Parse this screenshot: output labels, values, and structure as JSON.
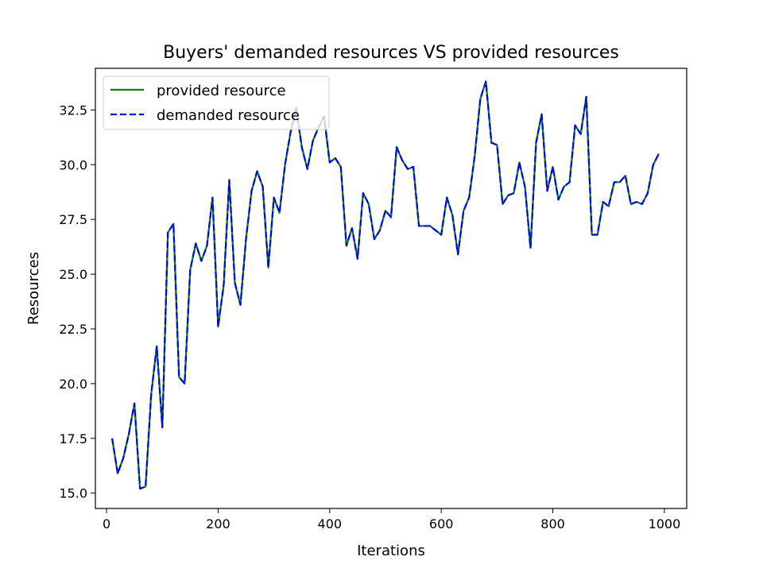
{
  "chart_data": {
    "type": "line",
    "title": "Buyers' demanded resources VS provided resources",
    "xlabel": "Iterations",
    "ylabel": "Resources",
    "xlim": [
      -20,
      1040
    ],
    "ylim": [
      14.3,
      34.4
    ],
    "xticks": [
      0,
      200,
      400,
      600,
      800,
      1000
    ],
    "xtick_labels": [
      "0",
      "200",
      "400",
      "600",
      "800",
      "1000"
    ],
    "yticks": [
      15.0,
      17.5,
      20.0,
      22.5,
      25.0,
      27.5,
      30.0,
      32.5
    ],
    "ytick_labels": [
      "15.0",
      "17.5",
      "20.0",
      "22.5",
      "25.0",
      "27.5",
      "30.0",
      "32.5"
    ],
    "grid": false,
    "legend_position": "upper-left",
    "x": [
      10,
      20,
      30,
      40,
      50,
      60,
      70,
      80,
      90,
      100,
      110,
      120,
      130,
      140,
      150,
      160,
      170,
      180,
      190,
      200,
      210,
      220,
      230,
      240,
      250,
      260,
      270,
      280,
      290,
      300,
      310,
      320,
      330,
      340,
      350,
      360,
      370,
      380,
      390,
      400,
      410,
      420,
      430,
      440,
      450,
      460,
      470,
      480,
      490,
      500,
      510,
      520,
      530,
      540,
      550,
      560,
      570,
      580,
      590,
      600,
      610,
      620,
      630,
      640,
      650,
      660,
      670,
      680,
      690,
      700,
      710,
      720,
      730,
      740,
      750,
      760,
      770,
      780,
      790,
      800,
      810,
      820,
      830,
      840,
      850,
      860,
      870,
      880,
      890,
      900,
      910,
      920,
      930,
      940,
      950,
      960,
      970,
      980,
      990
    ],
    "series": [
      {
        "name": "provided resource",
        "color": "#008000",
        "style": "solid",
        "values": [
          17.5,
          15.9,
          16.6,
          17.7,
          19.1,
          15.2,
          15.3,
          19.5,
          21.7,
          18.0,
          26.9,
          27.3,
          20.3,
          20.0,
          25.2,
          26.4,
          25.6,
          26.3,
          28.5,
          22.6,
          24.5,
          29.3,
          24.6,
          23.6,
          26.6,
          28.8,
          29.7,
          29.0,
          25.3,
          28.5,
          27.8,
          30.0,
          31.5,
          32.6,
          30.8,
          29.8,
          31.1,
          31.7,
          32.2,
          30.1,
          30.3,
          29.9,
          26.3,
          27.1,
          25.7,
          28.7,
          28.2,
          26.6,
          27.0,
          27.9,
          27.6,
          30.8,
          30.2,
          29.8,
          29.9,
          27.2,
          27.2,
          27.2,
          27.0,
          26.8,
          28.5,
          27.7,
          25.9,
          27.9,
          28.5,
          30.4,
          33.0,
          33.8,
          31.0,
          30.9,
          28.2,
          28.6,
          28.7,
          30.1,
          29.0,
          26.2,
          31.0,
          32.3,
          28.8,
          29.9,
          28.4,
          29.0,
          29.2,
          31.8,
          31.4,
          33.1,
          26.8,
          26.8,
          28.3,
          28.1,
          29.2,
          29.2,
          29.5,
          28.2,
          28.3,
          28.2,
          28.7,
          30.0,
          30.5
        ]
      },
      {
        "name": "demanded resource",
        "color": "#0000ff",
        "style": "dashed",
        "values": [
          17.5,
          15.9,
          16.6,
          17.7,
          19.1,
          15.2,
          15.3,
          19.5,
          21.7,
          18.0,
          26.9,
          27.3,
          20.3,
          20.0,
          25.2,
          26.4,
          25.6,
          26.3,
          28.5,
          22.6,
          24.5,
          29.3,
          24.6,
          23.6,
          26.6,
          28.8,
          29.7,
          29.0,
          25.3,
          28.5,
          27.8,
          30.0,
          31.5,
          32.6,
          30.8,
          29.8,
          31.1,
          31.7,
          32.2,
          30.1,
          30.3,
          29.9,
          26.3,
          27.1,
          25.7,
          28.7,
          28.2,
          26.6,
          27.0,
          27.9,
          27.6,
          30.8,
          30.2,
          29.8,
          29.9,
          27.2,
          27.2,
          27.2,
          27.0,
          26.8,
          28.5,
          27.7,
          25.9,
          27.9,
          28.5,
          30.4,
          33.0,
          33.8,
          31.0,
          30.9,
          28.2,
          28.6,
          28.7,
          30.1,
          29.0,
          26.2,
          31.0,
          32.3,
          28.8,
          29.9,
          28.4,
          29.0,
          29.2,
          31.8,
          31.4,
          33.1,
          26.8,
          26.8,
          28.3,
          28.1,
          29.2,
          29.2,
          29.5,
          28.2,
          28.3,
          28.2,
          28.7,
          30.0,
          30.5
        ]
      }
    ]
  }
}
